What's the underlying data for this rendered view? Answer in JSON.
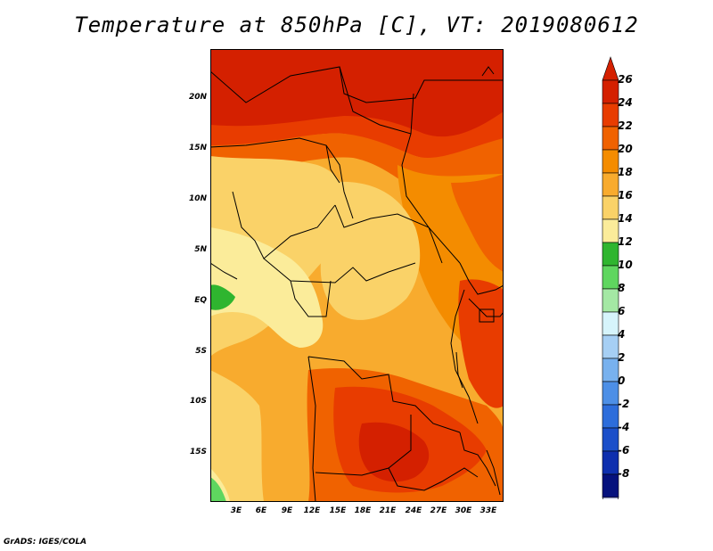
{
  "title": "Temperature at 850hPa [C], VT: 2019080612",
  "credit": "GrADS: IGES/COLA",
  "lat_labels": [
    "20N",
    "15N",
    "10N",
    "5N",
    "EQ",
    "5S",
    "10S",
    "15S"
  ],
  "lon_labels": [
    "3E",
    "6E",
    "9E",
    "12E",
    "15E",
    "18E",
    "21E",
    "24E",
    "27E",
    "30E",
    "33E"
  ],
  "colorbar": {
    "labels": [
      "26",
      "24",
      "22",
      "20",
      "18",
      "16",
      "14",
      "12",
      "10",
      "8",
      "6",
      "4",
      "2",
      "0",
      "-2",
      "-4",
      "-6",
      "-8"
    ],
    "colors": [
      "#d42000",
      "#e83c00",
      "#f06200",
      "#f48c00",
      "#f8ab2e",
      "#fad268",
      "#fbec9a",
      "#2fb52f",
      "#5fd65f",
      "#a4e8a4",
      "#d6f4fb",
      "#a6cff4",
      "#78b1ee",
      "#4d8fe6",
      "#2d6ddb",
      "#1b4fc9",
      "#0e2fae",
      "#05117d"
    ],
    "top_arrow_color": "#d42000",
    "bottom_arrow_color": "#dde0f8"
  },
  "chart_data": {
    "type": "heatmap",
    "title": "Temperature at 850hPa [C], VT: 2019080612",
    "variable": "Temperature at 850hPa",
    "units": "C",
    "valid_time": "2019080612",
    "lon_range": [
      0,
      34.5
    ],
    "lat_range": [
      -20,
      24.5
    ],
    "color_levels": [
      -8,
      -6,
      -4,
      -2,
      0,
      2,
      4,
      6,
      8,
      10,
      12,
      14,
      16,
      18,
      20,
      22,
      24,
      26
    ]
  }
}
